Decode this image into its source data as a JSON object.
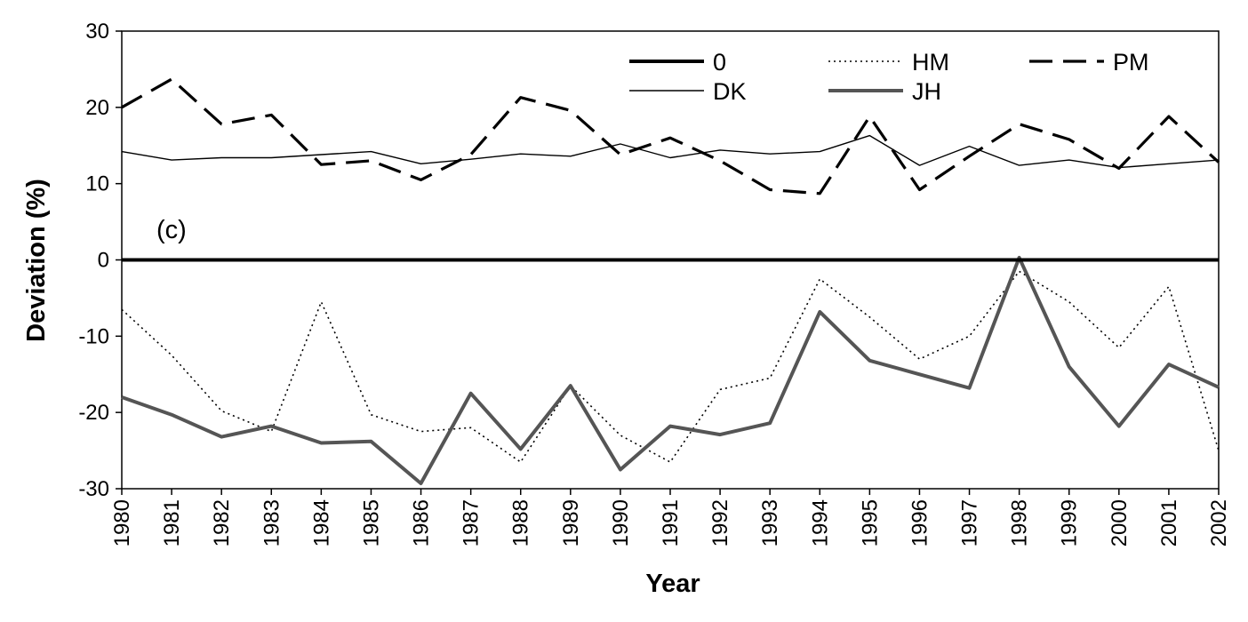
{
  "chart_data": {
    "type": "line",
    "xlabel": "Year",
    "ylabel": "Deviation (%)",
    "annotation": "(c)",
    "ylim": [
      -30,
      30
    ],
    "yticks": [
      -30,
      -20,
      -10,
      0,
      10,
      20,
      30
    ],
    "x": [
      "1980",
      "1981",
      "1982",
      "1983",
      "1984",
      "1985",
      "1986",
      "1987",
      "1988",
      "1989",
      "1990",
      "1991",
      "1992",
      "1993",
      "1994",
      "1995",
      "1996",
      "1997",
      "1998",
      "1999",
      "2000",
      "2001",
      "2002"
    ],
    "series": [
      {
        "name": "0",
        "style": "thick-solid",
        "color": "#000000",
        "values": [
          0,
          0,
          0,
          0,
          0,
          0,
          0,
          0,
          0,
          0,
          0,
          0,
          0,
          0,
          0,
          0,
          0,
          0,
          0,
          0,
          0,
          0,
          0
        ]
      },
      {
        "name": "HM",
        "style": "dotted",
        "color": "#000000",
        "values": [
          -6.5,
          -12.5,
          -19.8,
          -22.5,
          -5.5,
          -20.3,
          -22.5,
          -22.0,
          -26.5,
          -16.5,
          -23.0,
          -26.5,
          -17.0,
          -15.5,
          -2.5,
          -7.5,
          -13.0,
          -10.0,
          -1.5,
          -5.5,
          -11.5,
          -3.5,
          -25.0
        ]
      },
      {
        "name": "PM",
        "style": "dashed",
        "color": "#000000",
        "values": [
          20.0,
          23.7,
          17.8,
          19.0,
          12.5,
          13.0,
          10.5,
          13.8,
          21.3,
          19.6,
          13.8,
          16.0,
          13.0,
          9.2,
          8.7,
          18.8,
          9.2,
          13.6,
          17.8,
          15.8,
          12.0,
          18.8,
          12.8
        ]
      },
      {
        "name": "DK",
        "style": "thin-solid",
        "color": "#000000",
        "values": [
          14.2,
          13.1,
          13.4,
          13.4,
          13.8,
          14.2,
          12.6,
          13.2,
          13.9,
          13.6,
          15.2,
          13.4,
          14.4,
          13.9,
          14.2,
          16.3,
          12.4,
          14.9,
          12.4,
          13.1,
          12.1,
          12.6,
          13.1
        ]
      },
      {
        "name": "JH",
        "style": "thick-gray",
        "color": "#555555",
        "values": [
          -18.0,
          -20.3,
          -23.2,
          -21.8,
          -24.0,
          -23.8,
          -29.3,
          -17.5,
          -24.8,
          -16.5,
          -27.5,
          -21.8,
          -22.9,
          -21.4,
          -6.8,
          -13.2,
          -15.0,
          -16.8,
          0.3,
          -14.0,
          -21.8,
          -13.7,
          -16.7
        ]
      }
    ],
    "legend": {
      "position": "top-right",
      "columns": 3,
      "order": [
        "0",
        "HM",
        "PM",
        "DK",
        "JH"
      ]
    },
    "grid": false
  }
}
